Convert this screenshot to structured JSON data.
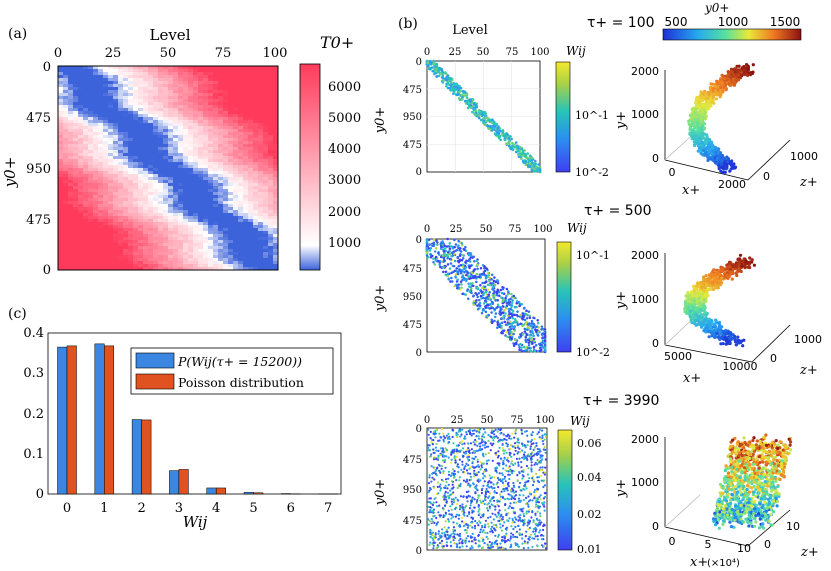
{
  "panels": {
    "a": "(a)",
    "b": "(b)",
    "c": "(c)"
  },
  "chart_data": [
    {
      "id": "a",
      "type": "heatmap",
      "xlabel": "Level",
      "ylabel": "y0+",
      "x_ticks": [
        "0",
        "25",
        "50",
        "75",
        "100"
      ],
      "y_ticks": [
        "0",
        "475",
        "950",
        "475",
        "0"
      ],
      "colorbar_label": "T0+",
      "colorbar_ticks": [
        "1000",
        "2000",
        "3000",
        "4000",
        "5000",
        "6000"
      ],
      "colorbar_range": [
        200,
        6800
      ],
      "colors": {
        "low": "#3d63db",
        "mid": "#ffffff",
        "high": "#ff3b5c"
      }
    },
    {
      "id": "b1",
      "type": "scatter",
      "title": "τ+ = 100",
      "xlabel": "Level",
      "ylabel": "y0+",
      "x_ticks": [
        "0",
        "25",
        "50",
        "75",
        "100"
      ],
      "y_ticks": [
        "0",
        "475",
        "950",
        "475",
        "0"
      ],
      "colorbar_label": "Wij",
      "colorbar_ticks": [
        "10^-1",
        "10^-2"
      ],
      "cube": {
        "ylabel": "y+",
        "xlabel": "x+",
        "zlabel": "z+",
        "y_ticks": [
          "0",
          "1000",
          "2000"
        ],
        "x_ticks": [
          "0",
          "2000"
        ],
        "z_ticks": [
          "0",
          "1000"
        ]
      },
      "top_colorbar": {
        "label": "y0+",
        "ticks": [
          "500",
          "1000",
          "1500"
        ]
      }
    },
    {
      "id": "b2",
      "type": "scatter",
      "title": "τ+ = 500",
      "ylabel": "y0+",
      "x_ticks": [
        "0",
        "25",
        "50",
        "75",
        "100"
      ],
      "y_ticks": [
        "0",
        "475",
        "950",
        "475",
        "0"
      ],
      "colorbar_label": "Wij",
      "colorbar_ticks": [
        "10^-1",
        "10^-2"
      ],
      "cube": {
        "ylabel": "y+",
        "xlabel": "x+",
        "zlabel": "z+",
        "y_ticks": [
          "0",
          "1000",
          "2000"
        ],
        "x_ticks": [
          "5000",
          "10000"
        ],
        "z_ticks": [
          "0",
          "1000"
        ]
      }
    },
    {
      "id": "b3",
      "type": "scatter",
      "title": "τ+ = 3990",
      "ylabel": "y0+",
      "x_ticks": [
        "0",
        "25",
        "50",
        "75",
        "100"
      ],
      "y_ticks": [
        "0",
        "475",
        "950",
        "475",
        "0"
      ],
      "colorbar_label": "Wij",
      "colorbar_ticks": [
        "0.06",
        "0.04",
        "0.02",
        "0.01"
      ],
      "cube": {
        "ylabel": "y+",
        "xlabel": "x+",
        "x_unit": "(×10⁴)",
        "zlabel": "z+",
        "y_ticks": [
          "0",
          "1000",
          "2000"
        ],
        "x_ticks": [
          "0",
          "5",
          "10"
        ],
        "z_ticks": [
          "0",
          "10"
        ]
      }
    },
    {
      "id": "c",
      "type": "bar",
      "xlabel": "Wij",
      "categories": [
        "0",
        "1",
        "2",
        "3",
        "4",
        "5",
        "6",
        "7"
      ],
      "ylim": [
        0,
        0.4
      ],
      "y_ticks": [
        "0",
        "0.1",
        "0.2",
        "0.3",
        "0.4"
      ],
      "series": [
        {
          "name": "P(Wij(τ+ = 15200))",
          "color": "#3a86e0",
          "values": [
            0.365,
            0.373,
            0.185,
            0.058,
            0.015,
            0.004,
            0.001,
            0.0003
          ]
        },
        {
          "name": "Poisson distribution",
          "color": "#e0521f",
          "values": [
            0.368,
            0.368,
            0.184,
            0.061,
            0.015,
            0.003,
            0.0005,
            0.0001
          ]
        }
      ]
    }
  ]
}
